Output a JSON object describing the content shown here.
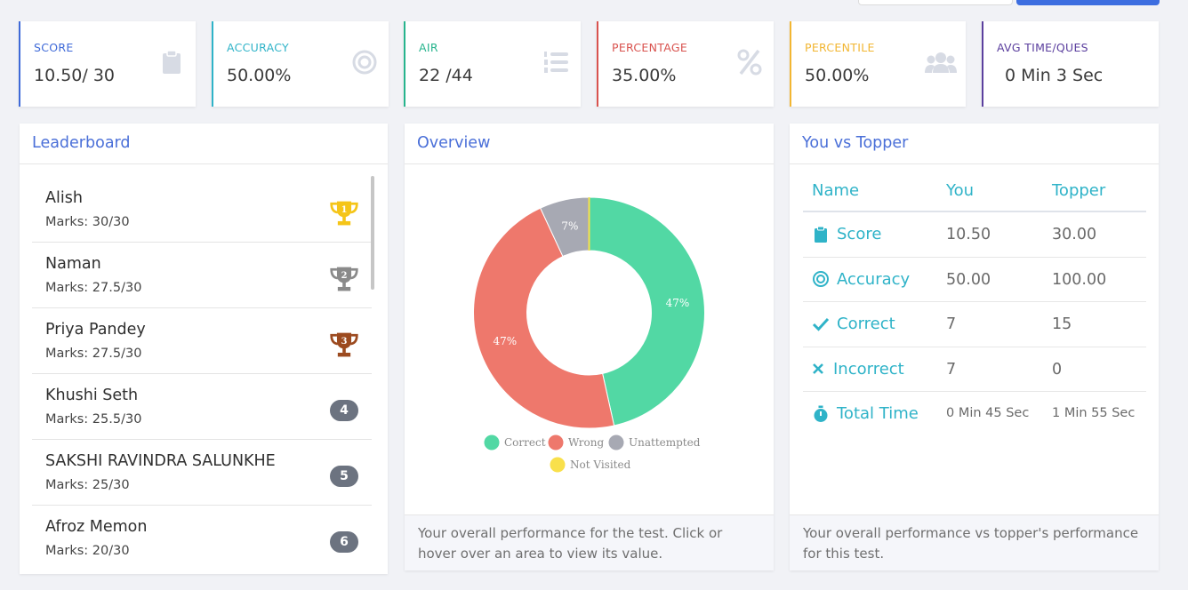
{
  "stats": [
    {
      "label": "SCORE",
      "value": "10.50/ 30",
      "color": "#3f6ad8",
      "icon": "clipboard-icon"
    },
    {
      "label": "ACCURACY",
      "value": "50.00%",
      "color": "#2fb3c8",
      "icon": "target-icon"
    },
    {
      "label": "AIR",
      "value": "22 /44",
      "color": "#27b48d",
      "icon": "ordered-list-icon"
    },
    {
      "label": "PERCENTAGE",
      "value": "35.00%",
      "color": "#d9534f",
      "icon": "percent-icon"
    },
    {
      "label": "PERCENTILE",
      "value": "50.00%",
      "color": "#f2b632",
      "icon": "users-icon"
    },
    {
      "label": "AVG TIME/QUES",
      "value": "0 Min 3 Sec",
      "color": "#5b3f9e",
      "icon": ""
    }
  ],
  "leaderboard": {
    "title": "Leaderboard",
    "items": [
      {
        "name": "Alish",
        "marks": "Marks: 30/30",
        "rank": "1"
      },
      {
        "name": "Naman",
        "marks": "Marks: 27.5/30",
        "rank": "2"
      },
      {
        "name": "Priya Pandey",
        "marks": "Marks: 27.5/30",
        "rank": "3"
      },
      {
        "name": "Khushi Seth",
        "marks": "Marks: 25.5/30",
        "rank": "4"
      },
      {
        "name": "SAKSHI RAVINDRA SALUNKHE",
        "marks": "Marks: 25/30",
        "rank": "5"
      },
      {
        "name": "Afroz Memon",
        "marks": "Marks: 20/30",
        "rank": "6"
      }
    ],
    "trophy_colors": {
      "1": "#f5c518",
      "2": "#8a8a8a",
      "3": "#9c4a1f"
    }
  },
  "overview": {
    "title": "Overview",
    "footer": "Your overall performance for the test. Click or hover over an area to view its value."
  },
  "vs": {
    "title": "You vs Topper",
    "headers": {
      "name": "Name",
      "you": "You",
      "topper": "Topper"
    },
    "rows": [
      {
        "name": "Score",
        "you": "10.50",
        "topper": "30.00",
        "icon": "clipboard-icon"
      },
      {
        "name": "Accuracy",
        "you": "50.00",
        "topper": "100.00",
        "icon": "target-icon"
      },
      {
        "name": "Correct",
        "you": "7",
        "topper": "15",
        "icon": "check-icon"
      },
      {
        "name": "Incorrect",
        "you": "7",
        "topper": "0",
        "icon": "cross-icon"
      },
      {
        "name": "Total Time",
        "you": "0 Min 45 Sec",
        "topper": "1 Min 55 Sec",
        "icon": "stopwatch-icon"
      }
    ],
    "footer": "Your overall performance vs topper's performance for this test."
  },
  "chart_data": {
    "type": "pie",
    "categories": [
      "Correct",
      "Wrong",
      "Unattempted",
      "Not Visited"
    ],
    "values": [
      47,
      47,
      7,
      0
    ],
    "value_labels": [
      "47%",
      "47%",
      "7%",
      ""
    ],
    "colors": [
      "#52d8a4",
      "#ee786c",
      "#a7a9b3",
      "#f9e04b"
    ],
    "legend_position": "bottom"
  }
}
